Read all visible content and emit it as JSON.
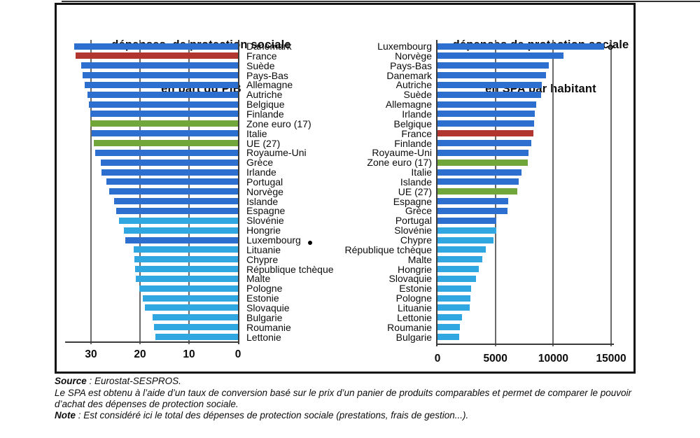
{
  "palette": {
    "eu15": "#2c6fce",
    "france": "#b23630",
    "aggregate": "#70a63a",
    "new_member": "#31a7e2",
    "gridline": "#6a6a6a",
    "axis": "#3a3a3a"
  },
  "notes": {
    "source": {
      "prefix": "Source",
      "text": " : Eurostat-SESPROS."
    },
    "spa_definition": "Le SPA est obtenu à l’aide d’un taux de conversion basé sur le prix d’un panier de produits comparables et permet de comparer le pouvoir d’achat des dépenses de protection sociale.",
    "note": {
      "prefix": "Note",
      "text": " : Est considéré ici le total des dépenses de protection sociale (prestations, frais de gestion...)."
    }
  },
  "chart_data": [
    {
      "id": "pib",
      "type": "bar",
      "orientation": "horizontal-bars-extending-left",
      "title": "dépenses  de protection sociale",
      "subtitle": "en part du PIB",
      "legend_position": "none",
      "grid": true,
      "xlim": [
        0,
        35
      ],
      "xticks": [
        30,
        20,
        10,
        0
      ],
      "xtick_labels": [
        "30",
        "20",
        "10",
        "0"
      ],
      "categories": [
        "Danemark",
        "France",
        "Suède",
        "Pays-Bas",
        "Allemagne",
        "Autriche",
        "Belgique",
        "Finlande",
        "Zone euro (17)",
        "Italie",
        "UE (27)",
        "Royaume-Uni",
        "Grèce",
        "Irlande",
        "Portugal",
        "Norvège",
        "Islande",
        "Espagne",
        "Slovénie",
        "Hongrie",
        "Luxembourg",
        "Lituanie",
        "Chypre",
        "République tchèque",
        "Malte",
        "Pologne",
        "Estonie",
        "Slovaquie",
        "Bulgarie",
        "Roumanie",
        "Lettonie"
      ],
      "values": [
        33.4,
        33.2,
        32.0,
        31.7,
        31.3,
        30.7,
        30.4,
        30.2,
        30.1,
        29.9,
        29.4,
        29.2,
        28.0,
        27.9,
        26.9,
        26.3,
        25.3,
        24.9,
        24.3,
        23.3,
        23.0,
        21.3,
        21.2,
        21.0,
        20.8,
        20.1,
        19.5,
        19.0,
        17.5,
        17.1,
        16.8
      ],
      "color_keys": [
        "eu15",
        "france",
        "eu15",
        "eu15",
        "eu15",
        "eu15",
        "eu15",
        "eu15",
        "aggregate",
        "eu15",
        "aggregate",
        "eu15",
        "eu15",
        "eu15",
        "eu15",
        "eu15",
        "eu15",
        "eu15",
        "new_member",
        "new_member",
        "eu15",
        "new_member",
        "new_member",
        "new_member",
        "new_member",
        "new_member",
        "new_member",
        "new_member",
        "new_member",
        "new_member",
        "new_member"
      ],
      "annotations": [
        {
          "label": "Luxembourg",
          "marker": "dot-after-label",
          "glyph": "●"
        }
      ]
    },
    {
      "id": "spa",
      "type": "bar",
      "orientation": "horizontal-bars-extending-right",
      "title": "dépenses de protection sociale",
      "subtitle": "en SPA par habitant",
      "legend_position": "none",
      "grid": true,
      "xlim": [
        0,
        15200
      ],
      "xticks": [
        0,
        5000,
        10000,
        15000
      ],
      "xtick_labels": [
        "0",
        "5000",
        "10000",
        "15000"
      ],
      "categories": [
        "Luxembourg",
        "Norvège",
        "Pays-Bas",
        "Danemark",
        "Autriche",
        "Suède",
        "Allemagne",
        "Irlande",
        "Belgique",
        "France",
        "Finlande",
        "Royaume-Uni",
        "Zone euro (17)",
        "Italie",
        "Islande",
        "UE (27)",
        "Espagne",
        "Grèce",
        "Portugal",
        "Slovénie",
        "Chypre",
        "République tchèque",
        "Malte",
        "Hongrie",
        "Slovaquie",
        "Estonie",
        "Pologne",
        "Lituanie",
        "Lettonie",
        "Roumanie",
        "Bulgarie"
      ],
      "values": [
        14400,
        10900,
        9600,
        9400,
        9000,
        8950,
        8500,
        8400,
        8350,
        8300,
        8100,
        7850,
        7800,
        7250,
        7000,
        6900,
        6100,
        6050,
        5100,
        5050,
        4850,
        4150,
        3850,
        3550,
        3300,
        2900,
        2850,
        2800,
        2100,
        1950,
        1850
      ],
      "color_keys": [
        "eu15",
        "eu15",
        "eu15",
        "eu15",
        "eu15",
        "eu15",
        "eu15",
        "eu15",
        "eu15",
        "france",
        "eu15",
        "eu15",
        "aggregate",
        "eu15",
        "eu15",
        "aggregate",
        "eu15",
        "eu15",
        "eu15",
        "new_member",
        "new_member",
        "new_member",
        "new_member",
        "new_member",
        "new_member",
        "new_member",
        "new_member",
        "new_member",
        "new_member",
        "new_member",
        "new_member"
      ],
      "annotations": [
        {
          "label": "Luxembourg",
          "marker": "circle-at-bar-end",
          "glyph": "o"
        }
      ]
    }
  ]
}
